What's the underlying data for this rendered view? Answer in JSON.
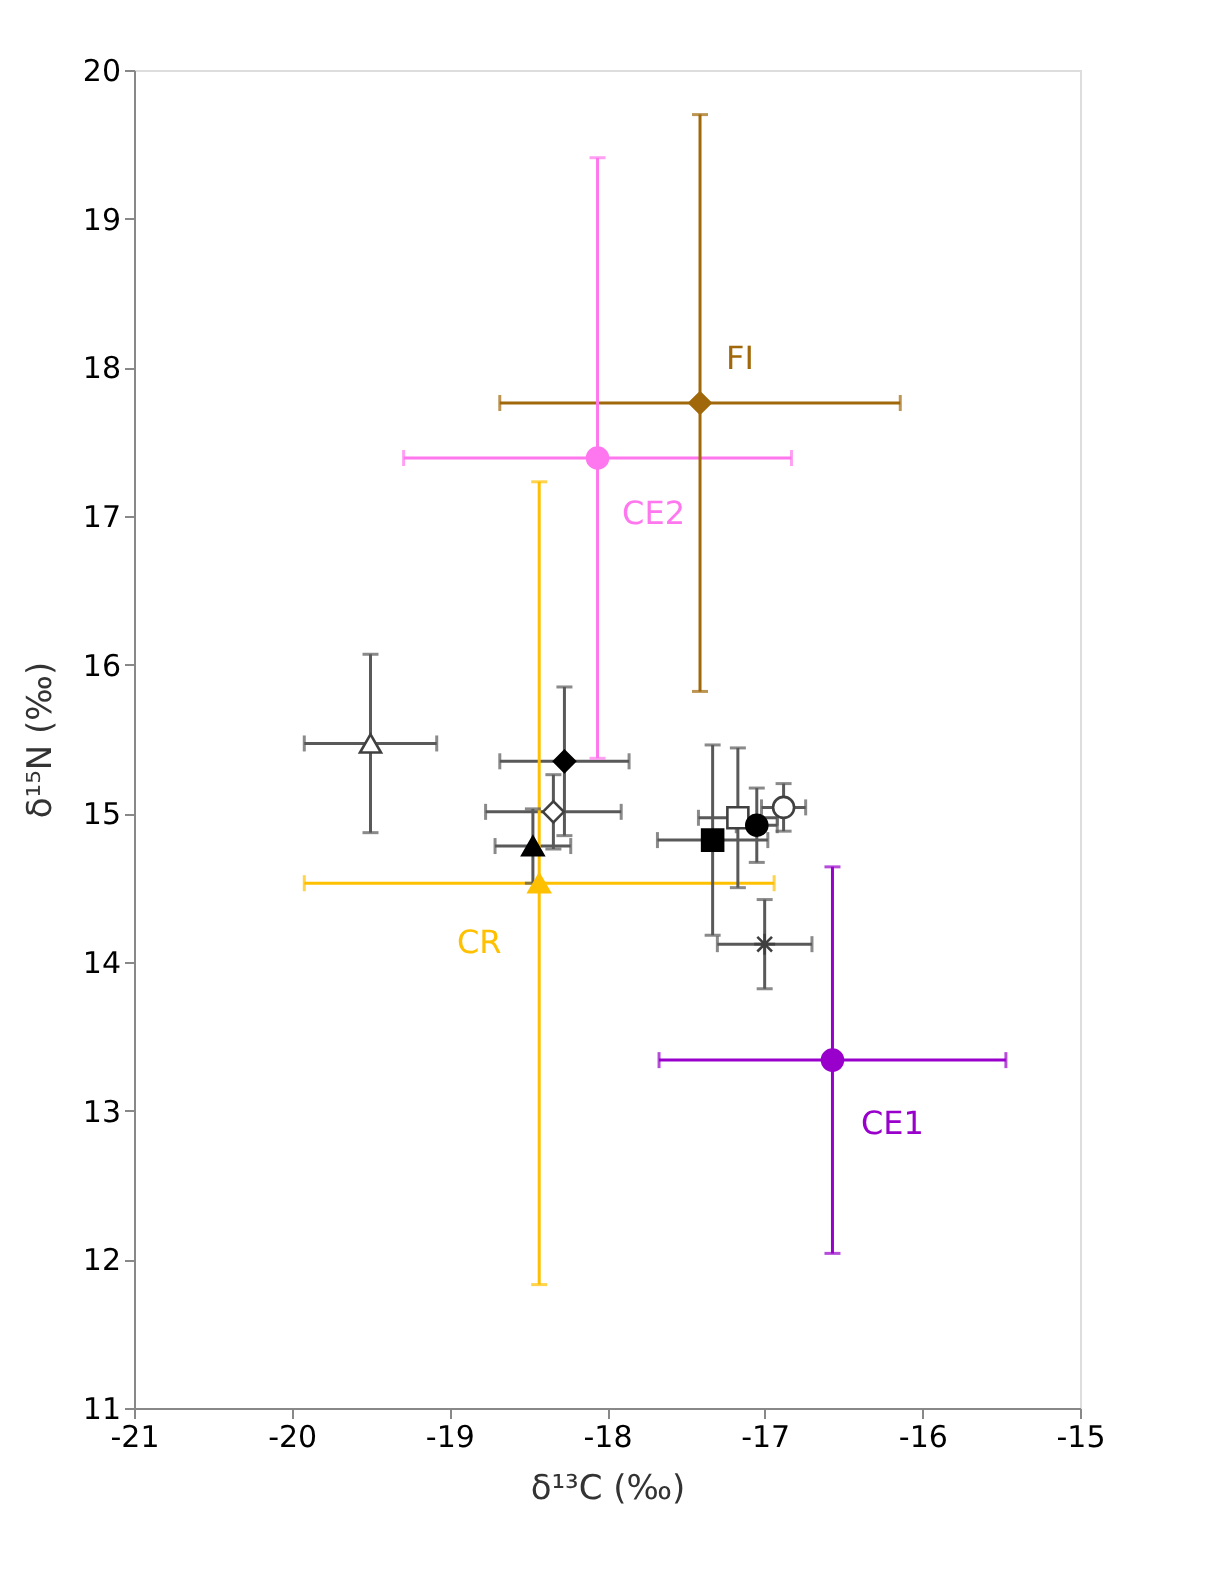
{
  "chart_data": {
    "type": "scatter",
    "xlabel": "δ¹³C (‰)",
    "ylabel": "δ¹⁵N (‰)",
    "xlim": [
      -21,
      -15
    ],
    "xticks": [
      -21,
      -20,
      -19,
      -18,
      -17,
      -16,
      -15
    ],
    "ylim": [
      11,
      20
    ],
    "yticks": [
      11,
      12,
      13,
      14,
      15,
      16,
      17,
      18,
      19,
      20
    ],
    "grid": false,
    "series": [
      {
        "name": "FI",
        "color": "#a0680a",
        "marker": "diamond",
        "x": [
          -17.41
        ],
        "values": [
          17.76
        ],
        "xerrors": [
          1.27
        ],
        "errors": [
          1.94
        ]
      },
      {
        "name": "CE2",
        "color": "#ff77ee",
        "marker": "circle",
        "x": [
          -18.06
        ],
        "values": [
          17.39
        ],
        "xerrors": [
          1.23
        ],
        "errors": [
          2.02
        ]
      },
      {
        "name": "CR",
        "color": "#ffc000",
        "marker": "triangle",
        "x": [
          -18.43
        ],
        "values": [
          14.53
        ],
        "xerrors": [
          1.49
        ],
        "errors": [
          2.7
        ]
      },
      {
        "name": "CE1",
        "color": "#9900cc",
        "marker": "circle",
        "x": [
          -16.57
        ],
        "values": [
          13.34
        ],
        "xerrors": [
          1.1
        ],
        "errors": [
          1.3
        ]
      },
      {
        "color": "#ffffff",
        "marker": "triangle",
        "x": [
          -19.5
        ],
        "values": [
          15.47
        ],
        "xerrors": [
          0.42
        ],
        "errors": [
          0.6
        ]
      },
      {
        "color": "#000000",
        "marker": "diamond",
        "x": [
          -18.27
        ],
        "values": [
          15.35
        ],
        "xerrors": [
          0.41
        ],
        "errors": [
          0.5
        ]
      },
      {
        "color": "#ffffff",
        "marker": "diamond",
        "x": [
          -18.34
        ],
        "values": [
          15.01
        ],
        "xerrors": [
          0.43
        ],
        "errors": [
          0.25
        ]
      },
      {
        "color": "#000000",
        "marker": "triangle",
        "x": [
          -18.47
        ],
        "values": [
          14.78
        ],
        "xerrors": [
          0.24
        ],
        "errors": [
          0.25
        ]
      },
      {
        "color": "#000000",
        "marker": "square",
        "x": [
          -17.33
        ],
        "values": [
          14.82
        ],
        "xerrors": [
          0.35
        ],
        "errors": [
          0.64
        ]
      },
      {
        "color": "#ffffff",
        "marker": "square",
        "x": [
          -17.17
        ],
        "values": [
          14.97
        ],
        "xerrors": [
          0.25
        ],
        "errors": [
          0.47
        ]
      },
      {
        "color": "#000000",
        "marker": "circle",
        "x": [
          -17.05
        ],
        "values": [
          14.92
        ],
        "xerrors": [
          0.13
        ],
        "errors": [
          0.25
        ]
      },
      {
        "color": "#ffffff",
        "marker": "circle",
        "x": [
          -16.88
        ],
        "values": [
          15.04
        ],
        "xerrors": [
          0.14
        ],
        "errors": [
          0.16
        ]
      },
      {
        "color": "#404040",
        "marker": "cross",
        "x": [
          -17.0
        ],
        "values": [
          14.12
        ],
        "xerrors": [
          0.3
        ],
        "errors": [
          0.3
        ]
      }
    ]
  }
}
